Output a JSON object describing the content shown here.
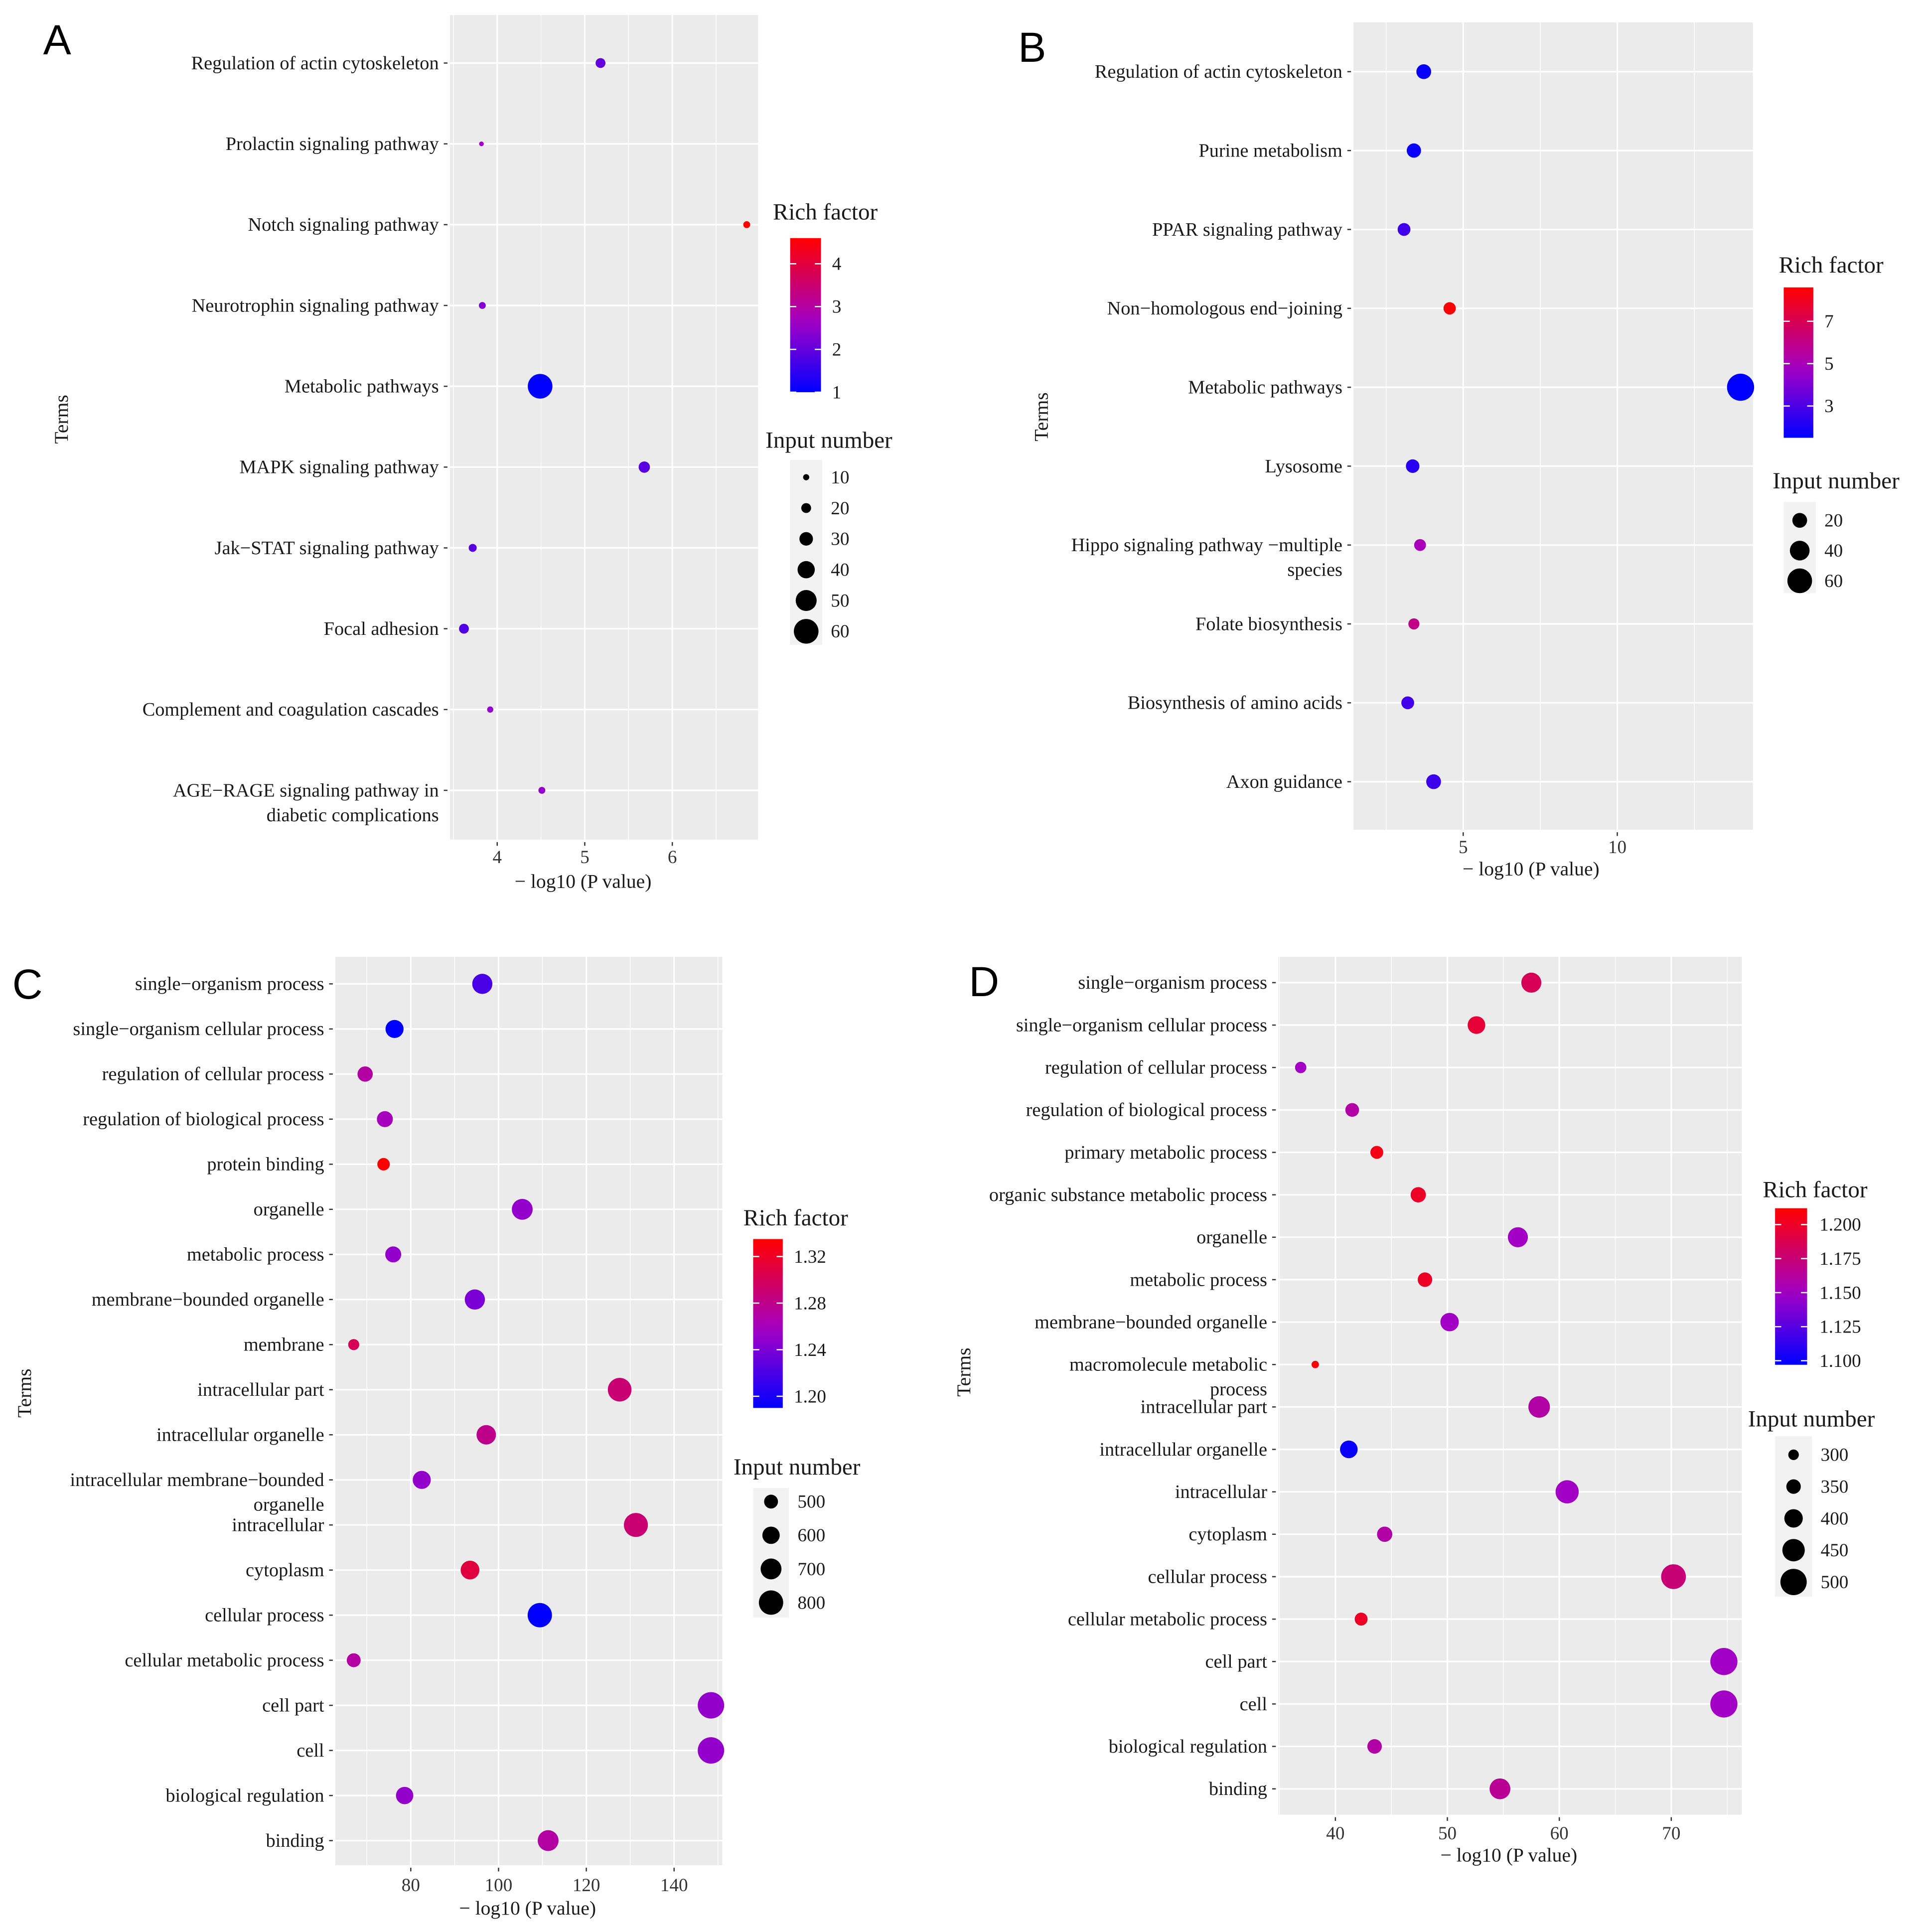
{
  "chart_data": [
    {
      "panel": "A",
      "type": "scatter",
      "xlabel": "− log10 (P value)",
      "ylabel": "Terms",
      "xlim": [
        3.46,
        6.98
      ],
      "xticks": [
        4,
        5,
        6
      ],
      "grid": true,
      "categories": [
        "Regulation of actin cytoskeleton",
        "Prolactin signaling pathway",
        "Notch signaling pathway",
        "Neurotrophin signaling pathway",
        "Metabolic pathways",
        "MAPK signaling pathway",
        "Jak−STAT signaling pathway",
        "Focal adhesion",
        "Complement and coagulation cascades",
        "AGE−RAGE signaling pathway in\ndiabetic complications"
      ],
      "x": [
        5.18,
        3.82,
        6.85,
        3.83,
        4.49,
        5.68,
        3.72,
        3.62,
        3.92,
        4.51
      ],
      "rich_factor": [
        2.0,
        2.6,
        4.6,
        2.3,
        1.0,
        1.9,
        1.9,
        1.8,
        2.5,
        2.5
      ],
      "input_number": [
        20,
        6,
        12,
        12,
        60,
        24,
        15,
        20,
        10,
        12
      ],
      "color_legend": {
        "title": "Rich factor",
        "ticks": [
          4,
          3,
          2,
          1
        ],
        "range": [
          1,
          4.6
        ],
        "low": "#0000FF",
        "high": "#FF0000"
      },
      "size_legend": {
        "title": "Input number",
        "values": [
          10,
          20,
          30,
          40,
          50,
          60
        ]
      }
    },
    {
      "panel": "B",
      "type": "scatter",
      "xlabel": "− log10 (P value)",
      "ylabel": "Terms",
      "xlim": [
        1.44,
        14.4
      ],
      "xticks": [
        5,
        10
      ],
      "grid": true,
      "categories": [
        "Regulation of actin cytoskeleton",
        "Purine metabolism",
        "PPAR signaling pathway",
        "Non−homologous end−joining",
        "Metabolic pathways",
        "Lysosome",
        "Hippo signaling pathway −multiple\nspecies",
        "Folate biosynthesis",
        "Biosynthesis of amino acids",
        "Axon guidance"
      ],
      "x": [
        3.72,
        3.4,
        3.08,
        4.56,
        14.0,
        3.36,
        3.6,
        3.4,
        3.2,
        4.04
      ],
      "rich_factor": [
        1.6,
        1.7,
        2.8,
        8.5,
        1.5,
        2.3,
        5.0,
        6.0,
        2.8,
        2.7
      ],
      "input_number": [
        20,
        18,
        12,
        10,
        70,
        15,
        8,
        5,
        12,
        20
      ],
      "color_legend": {
        "title": "Rich factor",
        "ticks": [
          7,
          5,
          3
        ],
        "range": [
          1.5,
          8.6
        ],
        "low": "#0000FF",
        "high": "#FF0000"
      },
      "size_legend": {
        "title": "Input number",
        "values": [
          20,
          40,
          60
        ]
      }
    },
    {
      "panel": "C",
      "type": "scatter",
      "xlabel": "− log10 (P value)",
      "ylabel": "Terms",
      "xlim": [
        62.8,
        151
      ],
      "xticks": [
        80,
        100,
        120,
        140
      ],
      "grid": true,
      "categories": [
        "single−organism process",
        "single−organism cellular process",
        "regulation of cellular process",
        "regulation of biological process",
        "protein binding",
        "organelle",
        "metabolic process",
        "membrane−bounded organelle",
        "membrane",
        "intracellular part",
        "intracellular organelle",
        "intracellular membrane−bounded\norganelle",
        "intracellular",
        "cytoplasm",
        "cellular process",
        "cellular metabolic process",
        "cell part",
        "cell",
        "biological regulation",
        "binding"
      ],
      "x": [
        96.3,
        76.3,
        69.6,
        74.1,
        73.8,
        105.4,
        76.0,
        94.6,
        67.0,
        127.6,
        97.2,
        82.5,
        131.3,
        93.5,
        109.4,
        67.0,
        148.4,
        148.4,
        78.6,
        111.3
      ],
      "rich_factor": [
        1.22,
        1.19,
        1.27,
        1.26,
        1.335,
        1.25,
        1.25,
        1.24,
        1.3,
        1.29,
        1.28,
        1.25,
        1.29,
        1.31,
        1.19,
        1.27,
        1.25,
        1.25,
        1.25,
        1.27
      ],
      "input_number": [
        680,
        620,
        540,
        560,
        460,
        700,
        560,
        680,
        420,
        780,
        660,
        620,
        790,
        640,
        800,
        500,
        860,
        860,
        600,
        700
      ],
      "color_legend": {
        "title": "Rich factor",
        "ticks": [
          "1.32",
          "1.28",
          "1.24",
          "1.20"
        ],
        "range": [
          1.19,
          1.335
        ],
        "low": "#0000FF",
        "high": "#FF0000"
      },
      "size_legend": {
        "title": "Input number",
        "values": [
          500,
          600,
          700,
          800
        ]
      }
    },
    {
      "panel": "D",
      "type": "scatter",
      "xlabel": "− log10 (P value)",
      "ylabel": "Terms",
      "xlim": [
        34.9,
        76.3
      ],
      "xticks": [
        40,
        50,
        60,
        70
      ],
      "grid": true,
      "categories": [
        "single−organism process",
        "single−organism cellular process",
        "regulation of cellular process",
        "regulation of biological process",
        "primary metabolic process",
        "organic substance metabolic process",
        "organelle",
        "metabolic process",
        "membrane−bounded organelle",
        "macromolecule metabolic\nprocess",
        "intracellular part",
        "intracellular organelle",
        "intracellular",
        "cytoplasm",
        "cellular process",
        "cellular metabolic process",
        "cell part",
        "cell",
        "biological regulation",
        "binding"
      ],
      "x": [
        57.5,
        52.6,
        36.9,
        41.5,
        43.7,
        47.4,
        56.3,
        48.0,
        50.2,
        38.2,
        58.2,
        41.2,
        60.7,
        44.4,
        70.2,
        42.3,
        74.7,
        74.7,
        43.5,
        54.7
      ],
      "rich_factor": [
        1.185,
        1.195,
        1.15,
        1.16,
        1.205,
        1.2,
        1.15,
        1.2,
        1.15,
        1.21,
        1.16,
        1.1,
        1.15,
        1.16,
        1.175,
        1.2,
        1.15,
        1.15,
        1.16,
        1.165
      ],
      "input_number": [
        420,
        390,
        310,
        340,
        330,
        360,
        420,
        350,
        400,
        260,
        440,
        390,
        460,
        360,
        480,
        330,
        510,
        510,
        350,
        430
      ],
      "color_legend": {
        "title": "Rich factor",
        "ticks": [
          "1.200",
          "1.175",
          "1.150",
          "1.125",
          "1.100"
        ],
        "range": [
          1.097,
          1.212
        ],
        "low": "#0000FF",
        "high": "#FF0000"
      },
      "size_legend": {
        "title": "Input number",
        "values": [
          300,
          350,
          400,
          450,
          500
        ]
      }
    }
  ]
}
